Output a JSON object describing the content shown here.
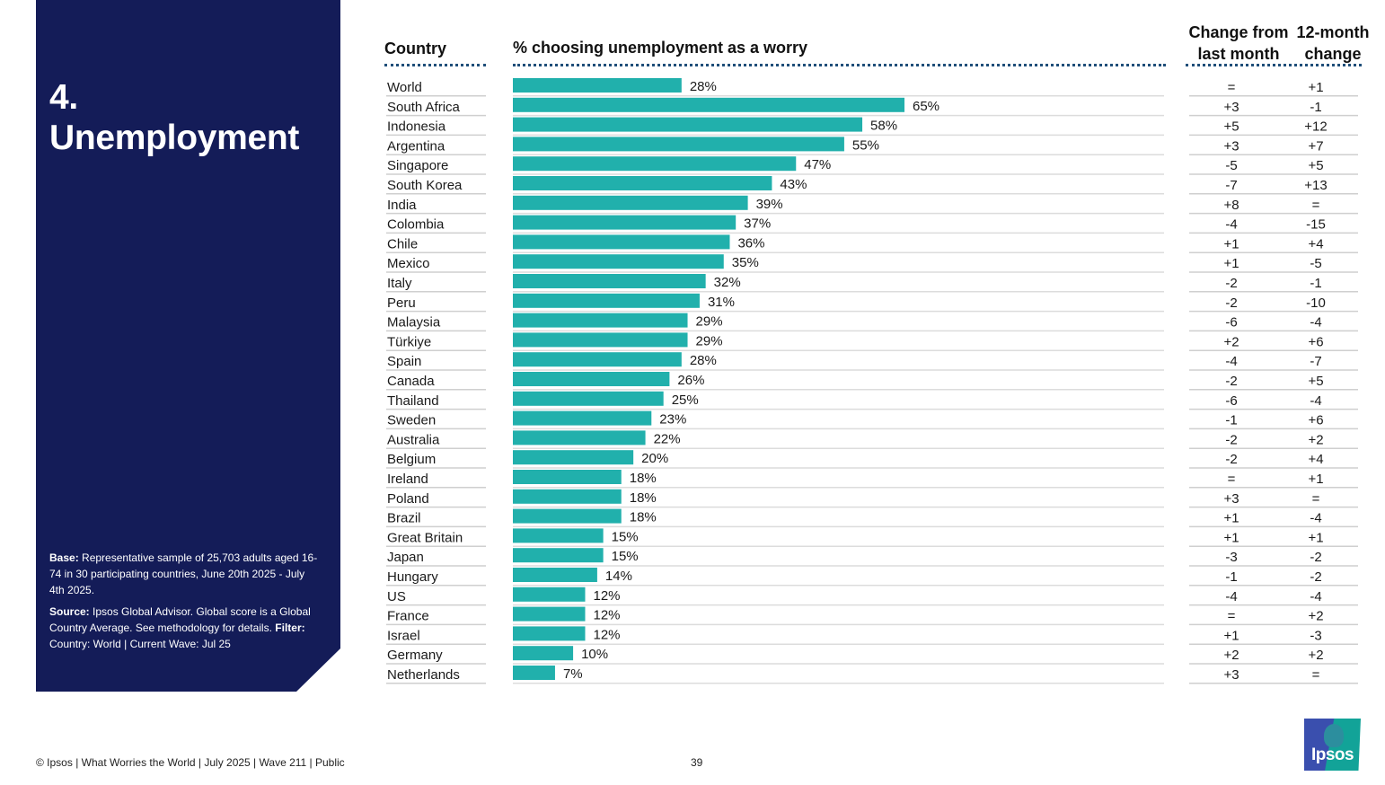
{
  "panel": {
    "section_number": "4.",
    "section_title": "Unemployment",
    "base_label": "Base:",
    "base_text": "Representative sample of 25,703 adults aged 16-74 in 30 participating countries, June 20th 2025 - July 4th 2025.",
    "source_label": "Source:",
    "source_text": "Ipsos Global Advisor. Global score is a Global Country Average. See methodology for details.",
    "filter_label": "Filter:",
    "filter_text": "Country: World | Current Wave: Jul 25"
  },
  "headers": {
    "country": "Country",
    "percent": "% choosing unemployment as a worry",
    "change_month_line1": "Change from",
    "change_month_line2": "last month",
    "change_year_line1": "12-month",
    "change_year_line2": "change"
  },
  "footer": {
    "credit": "© Ipsos | What Worries the World | July 2025 | Wave 211 | Public",
    "page_number": "39",
    "logo_text": "Ipsos"
  },
  "colors": {
    "panel": "#141c58",
    "bar": "#21b0ac",
    "dotted_rule": "#1f4e79"
  },
  "chart_data": {
    "type": "bar",
    "orientation": "horizontal",
    "title": "% choosing unemployment as a worry",
    "xlabel": "",
    "ylabel": "Country",
    "xlim": [
      0,
      100
    ],
    "value_suffix": "%",
    "categories": [
      "World",
      "South Africa",
      "Indonesia",
      "Argentina",
      "Singapore",
      "South Korea",
      "India",
      "Colombia",
      "Chile",
      "Mexico",
      "Italy",
      "Peru",
      "Malaysia",
      "Türkiye",
      "Spain",
      "Canada",
      "Thailand",
      "Sweden",
      "Australia",
      "Belgium",
      "Ireland",
      "Poland",
      "Brazil",
      "Great Britain",
      "Japan",
      "Hungary",
      "US",
      "France",
      "Israel",
      "Germany",
      "Netherlands"
    ],
    "values": [
      28,
      65,
      58,
      55,
      47,
      43,
      39,
      37,
      36,
      35,
      32,
      31,
      29,
      29,
      28,
      26,
      25,
      23,
      22,
      20,
      18,
      18,
      18,
      15,
      15,
      14,
      12,
      12,
      12,
      10,
      7
    ],
    "change_from_last_month": [
      "=",
      "+3",
      "+5",
      "+3",
      "-5",
      "-7",
      "+8",
      "-4",
      "+1",
      "+1",
      "-2",
      "-2",
      "-6",
      "+2",
      "-4",
      "-2",
      "-6",
      "-1",
      "-2",
      "-2",
      "=",
      "+3",
      "+1",
      "+1",
      "-3",
      "-1",
      "-4",
      "=",
      "+1",
      "+2",
      "+3"
    ],
    "change_12_month": [
      "+1",
      "-1",
      "+12",
      "+7",
      "+5",
      "+13",
      "=",
      "-15",
      "+4",
      "-5",
      "-1",
      "-10",
      "-4",
      "+6",
      "-7",
      "+5",
      "-4",
      "+6",
      "+2",
      "+4",
      "+1",
      "=",
      "-4",
      "+1",
      "-2",
      "-2",
      "-4",
      "+2",
      "-3",
      "+2",
      "="
    ]
  }
}
